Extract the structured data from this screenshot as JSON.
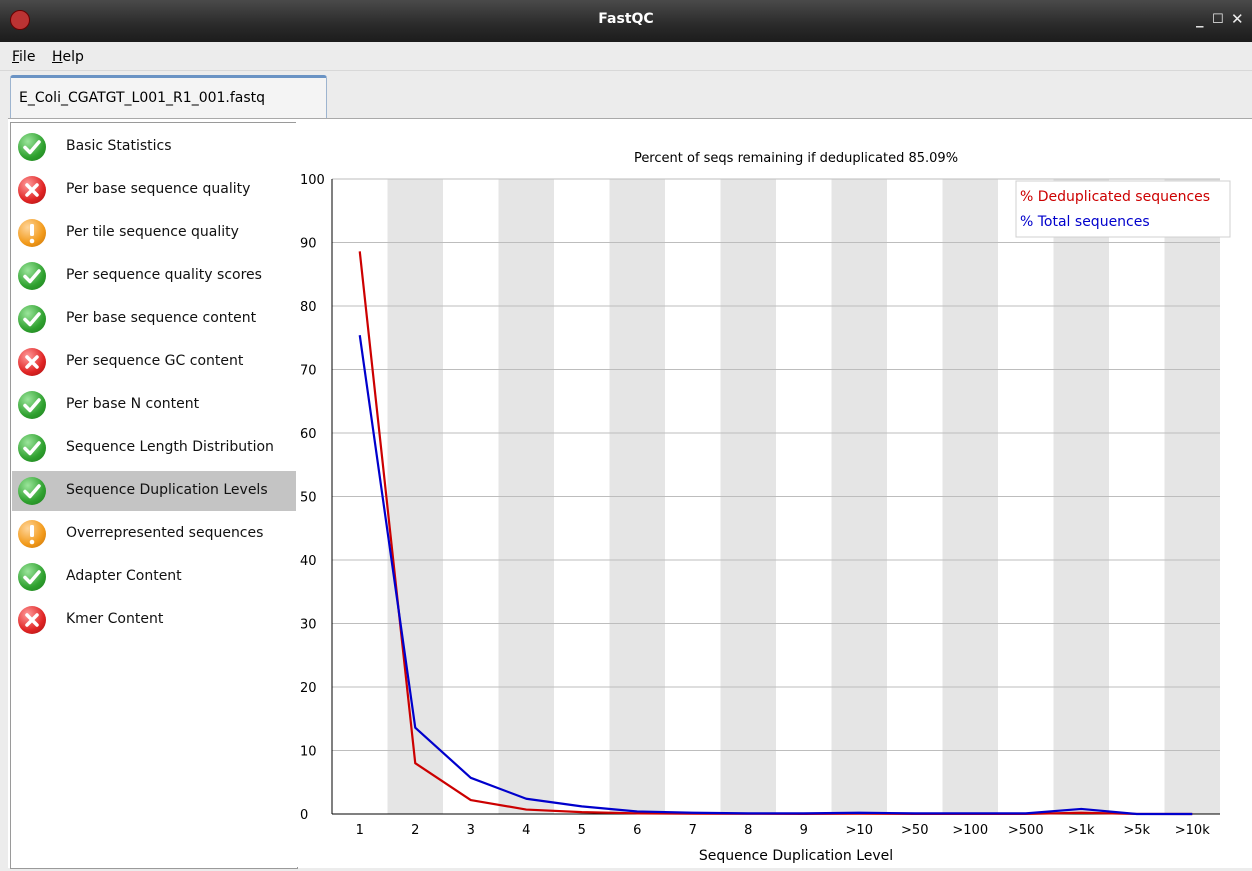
{
  "window": {
    "title": "FastQC"
  },
  "menu": [
    {
      "label": "File",
      "mnemonic": "F",
      "rest": "ile"
    },
    {
      "label": "Help",
      "mnemonic": "H",
      "rest": "elp"
    }
  ],
  "tab": {
    "label": "E_Coli_CGATGT_L001_R1_001.fastq"
  },
  "modules": [
    {
      "label": "Basic Statistics",
      "status": "pass",
      "icon": "check-icon"
    },
    {
      "label": "Per base sequence quality",
      "status": "fail",
      "icon": "cross-icon"
    },
    {
      "label": "Per tile sequence quality",
      "status": "warn",
      "icon": "exclamation-icon"
    },
    {
      "label": "Per sequence quality scores",
      "status": "pass",
      "icon": "check-icon"
    },
    {
      "label": "Per base sequence content",
      "status": "pass",
      "icon": "check-icon"
    },
    {
      "label": "Per sequence GC content",
      "status": "fail",
      "icon": "cross-icon"
    },
    {
      "label": "Per base N content",
      "status": "pass",
      "icon": "check-icon"
    },
    {
      "label": "Sequence Length Distribution",
      "status": "pass",
      "icon": "check-icon"
    },
    {
      "label": "Sequence Duplication Levels",
      "status": "pass",
      "icon": "check-icon",
      "selected": true
    },
    {
      "label": "Overrepresented sequences",
      "status": "warn",
      "icon": "exclamation-icon"
    },
    {
      "label": "Adapter Content",
      "status": "pass",
      "icon": "check-icon"
    },
    {
      "label": "Kmer Content",
      "status": "fail",
      "icon": "cross-icon"
    }
  ],
  "colors": {
    "pass": "#2fa12f",
    "fail": "#e02424",
    "warn": "#f29a1a",
    "dedup": "#cc0000",
    "total": "#0000cc"
  },
  "chart_data": {
    "type": "line",
    "title": "Percent of seqs remaining if deduplicated 85.09%",
    "xlabel": "Sequence Duplication Level",
    "ylabel": "",
    "categories": [
      "1",
      "2",
      "3",
      "4",
      "5",
      "6",
      "7",
      "8",
      "9",
      ">10",
      ">50",
      ">100",
      ">500",
      ">1k",
      ">5k",
      ">10k"
    ],
    "yticks": [
      0,
      10,
      20,
      30,
      40,
      50,
      60,
      70,
      80,
      90,
      100
    ],
    "ylim": [
      0,
      100
    ],
    "legend_position": "top-right",
    "series": [
      {
        "name": "% Deduplicated sequences",
        "color": "#cc0000",
        "values": [
          88.6,
          8.0,
          2.2,
          0.7,
          0.3,
          0.1,
          0.05,
          0.03,
          0.02,
          0.05,
          0.02,
          0.01,
          0.01,
          0.2,
          0.01,
          0.0
        ]
      },
      {
        "name": "% Total sequences",
        "color": "#0000cc",
        "values": [
          75.4,
          13.6,
          5.7,
          2.4,
          1.2,
          0.4,
          0.2,
          0.1,
          0.1,
          0.2,
          0.1,
          0.1,
          0.1,
          0.8,
          0.0,
          0.0
        ]
      }
    ]
  }
}
